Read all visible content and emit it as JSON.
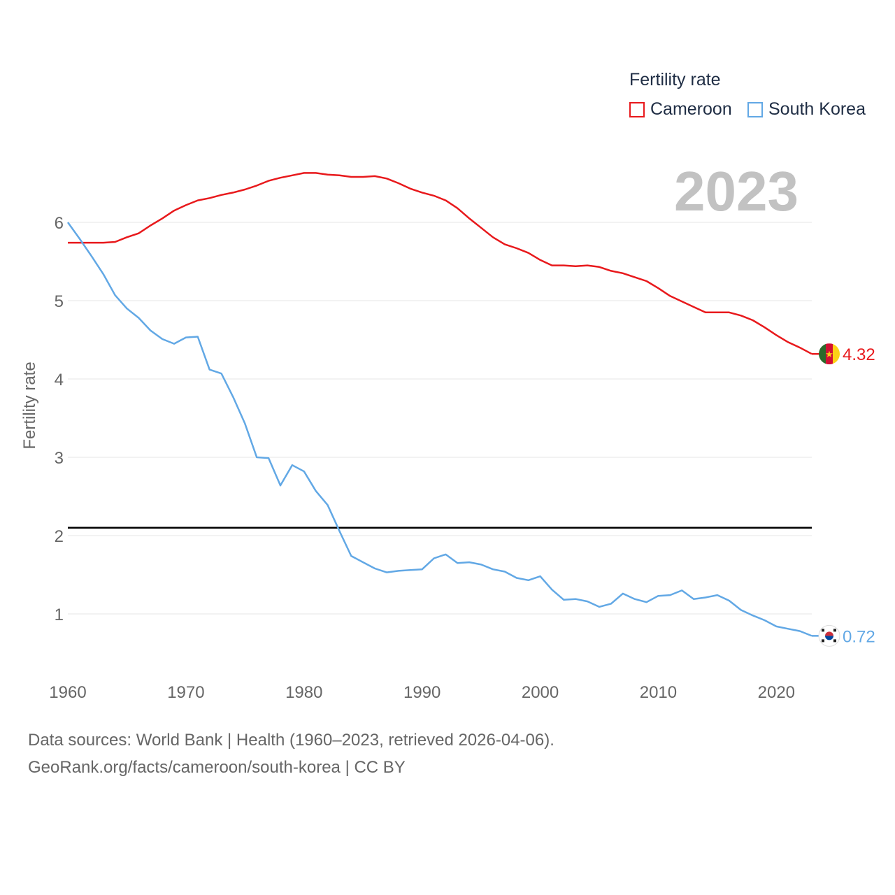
{
  "legend": {
    "title": "Fertility rate",
    "items": [
      {
        "label": "Cameroon",
        "color": "#e8191c"
      },
      {
        "label": "South Korea",
        "color": "#62a8e5"
      }
    ]
  },
  "year_label": "2023",
  "footer": {
    "line1": "Data sources: World Bank | Health (1960–2023, retrieved 2026-04-06).",
    "line2": "GeoRank.org/facts/cameroon/south-korea | CC BY"
  },
  "colors": {
    "cameroon": "#e8191c",
    "south_korea": "#62a8e5",
    "grid": "#e6e6e6",
    "reference": "#000000",
    "axis_text": "#666666"
  },
  "chart_data": {
    "type": "line",
    "title": "Fertility rate",
    "xlabel": "",
    "ylabel": "Fertility rate",
    "xlim": [
      1960,
      2023
    ],
    "ylim": [
      0.4,
      7.3
    ],
    "x_ticks": [
      1960,
      1970,
      1980,
      1990,
      2000,
      2010,
      2020
    ],
    "y_ticks": [
      1,
      2,
      3,
      4,
      5,
      6
    ],
    "reference_line": 2.1,
    "x": [
      1960,
      1961,
      1962,
      1963,
      1964,
      1965,
      1966,
      1967,
      1968,
      1969,
      1970,
      1971,
      1972,
      1973,
      1974,
      1975,
      1976,
      1977,
      1978,
      1979,
      1980,
      1981,
      1982,
      1983,
      1984,
      1985,
      1986,
      1987,
      1988,
      1989,
      1990,
      1991,
      1992,
      1993,
      1994,
      1995,
      1996,
      1997,
      1998,
      1999,
      2000,
      2001,
      2002,
      2003,
      2004,
      2005,
      2006,
      2007,
      2008,
      2009,
      2010,
      2011,
      2012,
      2013,
      2014,
      2015,
      2016,
      2017,
      2018,
      2019,
      2020,
      2021,
      2022,
      2023
    ],
    "series": [
      {
        "name": "Cameroon",
        "end_label": "4.32",
        "values": [
          5.74,
          5.74,
          5.74,
          5.74,
          5.75,
          5.81,
          5.86,
          5.96,
          6.05,
          6.15,
          6.22,
          6.28,
          6.31,
          6.35,
          6.38,
          6.42,
          6.47,
          6.53,
          6.57,
          6.6,
          6.63,
          6.63,
          6.61,
          6.6,
          6.58,
          6.58,
          6.59,
          6.56,
          6.5,
          6.43,
          6.38,
          6.34,
          6.28,
          6.18,
          6.05,
          5.93,
          5.81,
          5.72,
          5.67,
          5.61,
          5.52,
          5.45,
          5.45,
          5.44,
          5.45,
          5.43,
          5.38,
          5.35,
          5.3,
          5.25,
          5.16,
          5.06,
          4.99,
          4.92,
          4.85,
          4.85,
          4.85,
          4.81,
          4.75,
          4.66,
          4.56,
          4.47,
          4.4,
          4.32
        ]
      },
      {
        "name": "South Korea",
        "end_label": "0.72",
        "values": [
          6.0,
          5.79,
          5.57,
          5.34,
          5.07,
          4.9,
          4.78,
          4.62,
          4.51,
          4.45,
          4.53,
          4.54,
          4.12,
          4.07,
          3.77,
          3.43,
          3.0,
          2.99,
          2.64,
          2.9,
          2.82,
          2.57,
          2.39,
          2.06,
          1.74,
          1.66,
          1.58,
          1.53,
          1.55,
          1.56,
          1.57,
          1.71,
          1.76,
          1.65,
          1.66,
          1.63,
          1.57,
          1.54,
          1.46,
          1.43,
          1.48,
          1.31,
          1.18,
          1.19,
          1.16,
          1.09,
          1.13,
          1.26,
          1.19,
          1.15,
          1.23,
          1.24,
          1.3,
          1.19,
          1.21,
          1.24,
          1.17,
          1.05,
          0.98,
          0.92,
          0.84,
          0.81,
          0.78,
          0.72
        ]
      }
    ]
  }
}
